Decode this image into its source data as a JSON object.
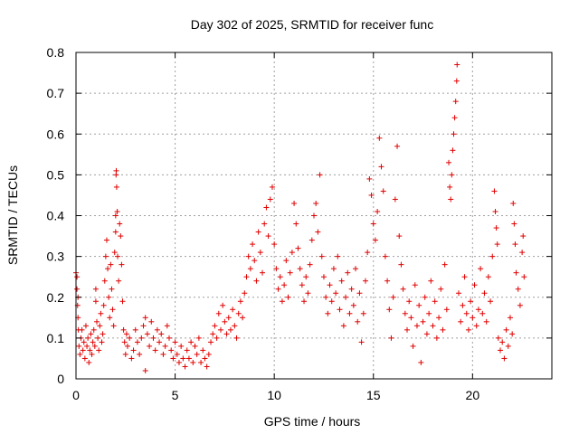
{
  "chart_data": {
    "type": "scatter",
    "title": "Day 302 of 2025, SRMTID for receiver func",
    "xlabel": "GPS time / hours",
    "ylabel": "SRMTID / TECUs",
    "xlim": [
      0,
      24
    ],
    "ylim": [
      0,
      0.8
    ],
    "xticks": [
      0,
      5,
      10,
      15,
      20
    ],
    "yticks": [
      0,
      0.1,
      0.2,
      0.3,
      0.4,
      0.5,
      0.6,
      0.7,
      0.8
    ],
    "xtick_labels": [
      "0",
      "5",
      "10",
      "15",
      "20"
    ],
    "ytick_labels": [
      "0",
      "0.1",
      "0.2",
      "0.3",
      "0.4",
      "0.5",
      "0.6",
      "0.7",
      "0.8"
    ],
    "grid": true,
    "marker": "+",
    "color": "#e00000",
    "series": [
      {
        "name": "SRMTID",
        "points": [
          [
            0.0,
            0.26
          ],
          [
            0.05,
            0.25
          ],
          [
            0.05,
            0.22
          ],
          [
            0.08,
            0.18
          ],
          [
            0.1,
            0.2
          ],
          [
            0.1,
            0.15
          ],
          [
            0.12,
            0.12
          ],
          [
            0.15,
            0.08
          ],
          [
            0.2,
            0.06
          ],
          [
            0.25,
            0.1
          ],
          [
            0.3,
            0.12
          ],
          [
            0.35,
            0.07
          ],
          [
            0.4,
            0.09
          ],
          [
            0.45,
            0.05
          ],
          [
            0.5,
            0.13
          ],
          [
            0.55,
            0.08
          ],
          [
            0.6,
            0.1
          ],
          [
            0.65,
            0.04
          ],
          [
            0.7,
            0.07
          ],
          [
            0.75,
            0.11
          ],
          [
            0.8,
            0.06
          ],
          [
            0.85,
            0.09
          ],
          [
            0.9,
            0.12
          ],
          [
            0.95,
            0.08
          ],
          [
            1.0,
            0.22
          ],
          [
            1.0,
            0.19
          ],
          [
            1.05,
            0.14
          ],
          [
            1.1,
            0.1
          ],
          [
            1.15,
            0.07
          ],
          [
            1.2,
            0.13
          ],
          [
            1.25,
            0.16
          ],
          [
            1.3,
            0.09
          ],
          [
            1.35,
            0.11
          ],
          [
            1.4,
            0.18
          ],
          [
            1.45,
            0.24
          ],
          [
            1.5,
            0.3
          ],
          [
            1.55,
            0.34
          ],
          [
            1.6,
            0.27
          ],
          [
            1.65,
            0.2
          ],
          [
            1.7,
            0.15
          ],
          [
            1.75,
            0.28
          ],
          [
            1.8,
            0.22
          ],
          [
            1.85,
            0.17
          ],
          [
            1.9,
            0.13
          ],
          [
            1.95,
            0.31
          ],
          [
            2.0,
            0.36
          ],
          [
            2.0,
            0.4
          ],
          [
            2.02,
            0.5
          ],
          [
            2.03,
            0.51
          ],
          [
            2.05,
            0.47
          ],
          [
            2.08,
            0.41
          ],
          [
            2.1,
            0.3
          ],
          [
            2.15,
            0.24
          ],
          [
            2.2,
            0.38
          ],
          [
            2.25,
            0.35
          ],
          [
            2.3,
            0.28
          ],
          [
            2.35,
            0.19
          ],
          [
            2.4,
            0.12
          ],
          [
            2.45,
            0.09
          ],
          [
            2.5,
            0.06
          ],
          [
            2.55,
            0.11
          ],
          [
            2.6,
            0.08
          ],
          [
            2.7,
            0.1
          ],
          [
            2.8,
            0.05
          ],
          [
            2.9,
            0.07
          ],
          [
            3.0,
            0.12
          ],
          [
            3.1,
            0.09
          ],
          [
            3.2,
            0.06
          ],
          [
            3.3,
            0.1
          ],
          [
            3.4,
            0.13
          ],
          [
            3.5,
            0.02
          ],
          [
            3.5,
            0.15
          ],
          [
            3.6,
            0.11
          ],
          [
            3.7,
            0.08
          ],
          [
            3.8,
            0.14
          ],
          [
            3.9,
            0.1
          ],
          [
            4.0,
            0.07
          ],
          [
            4.1,
            0.12
          ],
          [
            4.2,
            0.09
          ],
          [
            4.3,
            0.11
          ],
          [
            4.4,
            0.06
          ],
          [
            4.5,
            0.08
          ],
          [
            4.6,
            0.13
          ],
          [
            4.7,
            0.1
          ],
          [
            4.8,
            0.07
          ],
          [
            4.9,
            0.05
          ],
          [
            5.0,
            0.09
          ],
          [
            5.1,
            0.06
          ],
          [
            5.2,
            0.04
          ],
          [
            5.3,
            0.08
          ],
          [
            5.4,
            0.05
          ],
          [
            5.5,
            0.03
          ],
          [
            5.6,
            0.07
          ],
          [
            5.7,
            0.05
          ],
          [
            5.8,
            0.09
          ],
          [
            5.9,
            0.04
          ],
          [
            6.0,
            0.08
          ],
          [
            6.1,
            0.06
          ],
          [
            6.2,
            0.1
          ],
          [
            6.3,
            0.04
          ],
          [
            6.4,
            0.07
          ],
          [
            6.5,
            0.05
          ],
          [
            6.6,
            0.03
          ],
          [
            6.7,
            0.06
          ],
          [
            6.8,
            0.09
          ],
          [
            6.9,
            0.11
          ],
          [
            7.0,
            0.13
          ],
          [
            7.1,
            0.1
          ],
          [
            7.2,
            0.16
          ],
          [
            7.3,
            0.12
          ],
          [
            7.4,
            0.18
          ],
          [
            7.5,
            0.14
          ],
          [
            7.6,
            0.11
          ],
          [
            7.7,
            0.15
          ],
          [
            7.8,
            0.12
          ],
          [
            7.9,
            0.17
          ],
          [
            8.0,
            0.13
          ],
          [
            8.1,
            0.1
          ],
          [
            8.2,
            0.16
          ],
          [
            8.3,
            0.19
          ],
          [
            8.4,
            0.15
          ],
          [
            8.5,
            0.21
          ],
          [
            8.6,
            0.25
          ],
          [
            8.7,
            0.3
          ],
          [
            8.8,
            0.27
          ],
          [
            8.9,
            0.33
          ],
          [
            9.0,
            0.29
          ],
          [
            9.1,
            0.24
          ],
          [
            9.2,
            0.36
          ],
          [
            9.3,
            0.31
          ],
          [
            9.4,
            0.26
          ],
          [
            9.5,
            0.38
          ],
          [
            9.6,
            0.42
          ],
          [
            9.7,
            0.35
          ],
          [
            9.8,
            0.44
          ],
          [
            9.9,
            0.47
          ],
          [
            10.0,
            0.33
          ],
          [
            10.1,
            0.27
          ],
          [
            10.2,
            0.22
          ],
          [
            10.3,
            0.25
          ],
          [
            10.4,
            0.19
          ],
          [
            10.5,
            0.23
          ],
          [
            10.6,
            0.29
          ],
          [
            10.7,
            0.2
          ],
          [
            10.8,
            0.26
          ],
          [
            10.9,
            0.31
          ],
          [
            11.0,
            0.43
          ],
          [
            11.1,
            0.38
          ],
          [
            11.2,
            0.32
          ],
          [
            11.3,
            0.27
          ],
          [
            11.4,
            0.23
          ],
          [
            11.5,
            0.19
          ],
          [
            11.6,
            0.25
          ],
          [
            11.7,
            0.21
          ],
          [
            11.8,
            0.28
          ],
          [
            11.9,
            0.34
          ],
          [
            12.0,
            0.4
          ],
          [
            12.1,
            0.43
          ],
          [
            12.2,
            0.36
          ],
          [
            12.3,
            0.5
          ],
          [
            12.4,
            0.3
          ],
          [
            12.5,
            0.25
          ],
          [
            12.6,
            0.2
          ],
          [
            12.7,
            0.16
          ],
          [
            12.8,
            0.23
          ],
          [
            12.9,
            0.19
          ],
          [
            13.0,
            0.27
          ],
          [
            13.1,
            0.21
          ],
          [
            13.2,
            0.3
          ],
          [
            13.3,
            0.17
          ],
          [
            13.4,
            0.24
          ],
          [
            13.5,
            0.13
          ],
          [
            13.6,
            0.2
          ],
          [
            13.7,
            0.26
          ],
          [
            13.8,
            0.16
          ],
          [
            13.9,
            0.22
          ],
          [
            14.0,
            0.18
          ],
          [
            14.1,
            0.27
          ],
          [
            14.2,
            0.14
          ],
          [
            14.3,
            0.21
          ],
          [
            14.4,
            0.09
          ],
          [
            14.5,
            0.16
          ],
          [
            14.6,
            0.24
          ],
          [
            14.7,
            0.31
          ],
          [
            14.8,
            0.49
          ],
          [
            14.9,
            0.45
          ],
          [
            15.0,
            0.38
          ],
          [
            15.1,
            0.34
          ],
          [
            15.2,
            0.41
          ],
          [
            15.3,
            0.59
          ],
          [
            15.4,
            0.52
          ],
          [
            15.5,
            0.46
          ],
          [
            15.6,
            0.3
          ],
          [
            15.7,
            0.24
          ],
          [
            15.8,
            0.17
          ],
          [
            15.9,
            0.1
          ],
          [
            16.0,
            0.2
          ],
          [
            16.1,
            0.44
          ],
          [
            16.2,
            0.57
          ],
          [
            16.3,
            0.35
          ],
          [
            16.4,
            0.28
          ],
          [
            16.5,
            0.22
          ],
          [
            16.6,
            0.16
          ],
          [
            16.7,
            0.12
          ],
          [
            16.8,
            0.19
          ],
          [
            16.9,
            0.15
          ],
          [
            17.0,
            0.08
          ],
          [
            17.1,
            0.23
          ],
          [
            17.2,
            0.13
          ],
          [
            17.3,
            0.18
          ],
          [
            17.4,
            0.04
          ],
          [
            17.5,
            0.14
          ],
          [
            17.6,
            0.2
          ],
          [
            17.7,
            0.11
          ],
          [
            17.8,
            0.16
          ],
          [
            17.9,
            0.24
          ],
          [
            18.0,
            0.13
          ],
          [
            18.1,
            0.19
          ],
          [
            18.2,
            0.1
          ],
          [
            18.3,
            0.15
          ],
          [
            18.4,
            0.22
          ],
          [
            18.5,
            0.12
          ],
          [
            18.6,
            0.28
          ],
          [
            18.7,
            0.17
          ],
          [
            18.8,
            0.53
          ],
          [
            18.85,
            0.47
          ],
          [
            18.9,
            0.44
          ],
          [
            18.95,
            0.5
          ],
          [
            19.0,
            0.56
          ],
          [
            19.05,
            0.6
          ],
          [
            19.1,
            0.64
          ],
          [
            19.15,
            0.68
          ],
          [
            19.2,
            0.73
          ],
          [
            19.22,
            0.77
          ],
          [
            19.3,
            0.21
          ],
          [
            19.4,
            0.14
          ],
          [
            19.5,
            0.18
          ],
          [
            19.6,
            0.25
          ],
          [
            19.7,
            0.16
          ],
          [
            19.8,
            0.12
          ],
          [
            19.9,
            0.19
          ],
          [
            20.0,
            0.15
          ],
          [
            20.1,
            0.23
          ],
          [
            20.2,
            0.13
          ],
          [
            20.3,
            0.17
          ],
          [
            20.4,
            0.27
          ],
          [
            20.5,
            0.16
          ],
          [
            20.6,
            0.21
          ],
          [
            20.7,
            0.14
          ],
          [
            20.8,
            0.25
          ],
          [
            20.9,
            0.19
          ],
          [
            21.0,
            0.3
          ],
          [
            21.1,
            0.46
          ],
          [
            21.15,
            0.41
          ],
          [
            21.2,
            0.37
          ],
          [
            21.25,
            0.33
          ],
          [
            21.3,
            0.1
          ],
          [
            21.4,
            0.07
          ],
          [
            21.5,
            0.09
          ],
          [
            21.6,
            0.05
          ],
          [
            21.7,
            0.12
          ],
          [
            21.8,
            0.08
          ],
          [
            21.9,
            0.15
          ],
          [
            22.0,
            0.11
          ],
          [
            22.05,
            0.43
          ],
          [
            22.1,
            0.38
          ],
          [
            22.15,
            0.33
          ],
          [
            22.2,
            0.26
          ],
          [
            22.3,
            0.22
          ],
          [
            22.4,
            0.18
          ],
          [
            22.5,
            0.31
          ],
          [
            22.55,
            0.35
          ],
          [
            22.6,
            0.25
          ]
        ]
      }
    ]
  }
}
